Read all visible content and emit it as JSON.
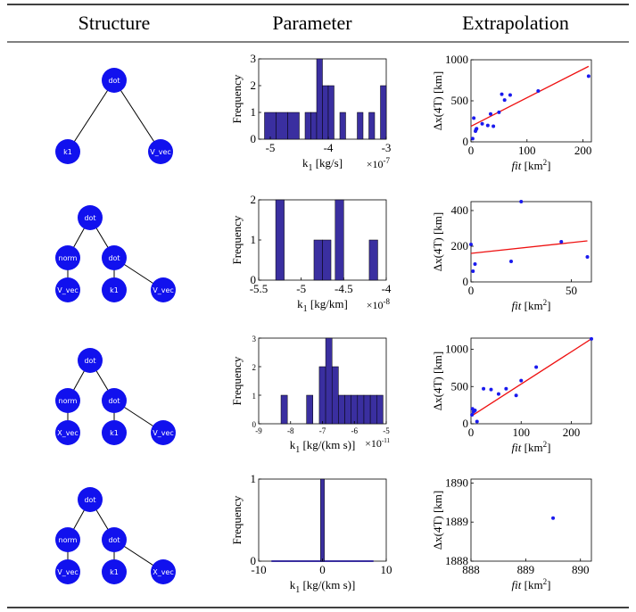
{
  "table": {
    "headers": [
      "Structure",
      "Parameter",
      "Extrapolation"
    ]
  },
  "colors": {
    "node": "#1111ee",
    "bar_fill": "#3a2fa0",
    "point": "#1a1aee",
    "fit_line": "#ee1111"
  },
  "trees": [
    {
      "root": "dot",
      "children": [
        {
          "label": "k1"
        },
        {
          "label": "V_vec"
        }
      ]
    },
    {
      "root": "dot",
      "children": [
        {
          "label": "norm",
          "children": [
            "V_vec"
          ]
        },
        {
          "label": "dot",
          "children": [
            "k1",
            "V_vec"
          ]
        }
      ]
    },
    {
      "root": "dot",
      "children": [
        {
          "label": "norm",
          "children": [
            "X_vec"
          ]
        },
        {
          "label": "dot",
          "children": [
            "k1",
            "V_vec"
          ]
        }
      ]
    },
    {
      "root": "dot",
      "children": [
        {
          "label": "norm",
          "children": [
            "V_vec"
          ]
        },
        {
          "label": "dot",
          "children": [
            "k1",
            "X_vec"
          ]
        }
      ]
    }
  ],
  "chart_data": [
    {
      "type": "bar",
      "role": "histogram",
      "bins": [
        [
          -5.1,
          -4.9
        ],
        [
          -4.9,
          -4.7
        ],
        [
          -4.7,
          -4.5
        ],
        [
          -4.4,
          -4.3
        ],
        [
          -4.3,
          -4.2
        ],
        [
          -4.2,
          -4.1
        ],
        [
          -4.1,
          -4.0
        ],
        [
          -4.0,
          -3.9
        ],
        [
          -3.8,
          -3.7
        ],
        [
          -3.5,
          -3.4
        ],
        [
          -3.3,
          -3.2
        ],
        [
          -3.1,
          -3.0
        ]
      ],
      "values": [
        1,
        1,
        1,
        1,
        1,
        3,
        2,
        2,
        1,
        1,
        1,
        2
      ],
      "xlim": [
        -5.2,
        -3.0
      ],
      "ylim": [
        0,
        3
      ],
      "xticks": [
        "-5",
        "-4",
        "-3"
      ],
      "yticks": [
        "0",
        "1",
        "2",
        "3"
      ],
      "xlabel": "k",
      "xlabel_sub": "1",
      "xlabel_unit": " [kg/s]",
      "exponent": "×10",
      "exponent_power": "-7",
      "ylabel": "Frequency"
    },
    {
      "type": "scatter",
      "points": [
        [
          3,
          40
        ],
        [
          5,
          290
        ],
        [
          8,
          130
        ],
        [
          9,
          150
        ],
        [
          10,
          160
        ],
        [
          20,
          220
        ],
        [
          30,
          200
        ],
        [
          35,
          340
        ],
        [
          40,
          190
        ],
        [
          50,
          360
        ],
        [
          55,
          580
        ],
        [
          60,
          510
        ],
        [
          70,
          570
        ],
        [
          120,
          620
        ],
        [
          210,
          800
        ]
      ],
      "fit": [
        [
          0,
          190
        ],
        [
          210,
          920
        ]
      ],
      "xlim": [
        0,
        215
      ],
      "ylim": [
        0,
        1000
      ],
      "xticks": [
        "0",
        "100",
        "200"
      ],
      "yticks": [
        "0",
        "500",
        "1000"
      ],
      "xlabel": "fit",
      "xlabel_unit": " [km",
      "xlabel_sup": "2",
      "xlabel_close": "]",
      "ylabel": "Δx(4T) [km]"
    },
    {
      "type": "bar",
      "role": "histogram",
      "bins": [
        [
          -5.3,
          -5.2
        ],
        [
          -4.85,
          -4.75
        ],
        [
          -4.75,
          -4.65
        ],
        [
          -4.6,
          -4.5
        ],
        [
          -4.2,
          -4.1
        ]
      ],
      "values": [
        2,
        1,
        1,
        2,
        1
      ],
      "xlim": [
        -5.5,
        -4.0
      ],
      "ylim": [
        0,
        2
      ],
      "xticks": [
        "-5.5",
        "-5",
        "-4.5",
        "-4"
      ],
      "yticks": [
        "0",
        "1",
        "2"
      ],
      "xlabel": "k",
      "xlabel_sub": "1",
      "xlabel_unit": " [kg/km]",
      "exponent": "×10",
      "exponent_power": "-8",
      "ylabel": "Frequency"
    },
    {
      "type": "scatter",
      "points": [
        [
          0,
          210
        ],
        [
          1,
          60
        ],
        [
          2,
          100
        ],
        [
          20,
          115
        ],
        [
          25,
          450
        ],
        [
          45,
          225
        ],
        [
          58,
          140
        ]
      ],
      "fit": [
        [
          0,
          160
        ],
        [
          58,
          230
        ]
      ],
      "xlim": [
        0,
        60
      ],
      "ylim": [
        0,
        450
      ],
      "xticks": [
        "0",
        "50"
      ],
      "yticks": [
        "0",
        "200",
        "400"
      ],
      "xlabel": "fit",
      "xlabel_unit": " [km",
      "xlabel_sup": "2",
      "xlabel_close": "]",
      "ylabel": "Δx(4T) [km]"
    },
    {
      "type": "bar",
      "role": "histogram",
      "bins": [
        [
          -8.3,
          -8.1
        ],
        [
          -7.5,
          -7.3
        ],
        [
          -7.1,
          -6.9
        ],
        [
          -6.9,
          -6.7
        ],
        [
          -6.7,
          -6.5
        ],
        [
          -6.5,
          -6.3
        ],
        [
          -6.3,
          -6.1
        ],
        [
          -6.1,
          -5.9
        ],
        [
          -5.9,
          -5.7
        ],
        [
          -5.7,
          -5.5
        ],
        [
          -5.5,
          -5.3
        ],
        [
          -5.3,
          -5.1
        ]
      ],
      "values": [
        1,
        1,
        2,
        3,
        2,
        1,
        1,
        1,
        1,
        1,
        1,
        1
      ],
      "xlim": [
        -9,
        -5
      ],
      "ylim": [
        0,
        3
      ],
      "xticks": [
        "-9",
        "-8",
        "-7",
        "-6",
        "-5"
      ],
      "yticks": [
        "0",
        "1",
        "2",
        "3"
      ],
      "xlabel": "k",
      "xlabel_sub": "1",
      "xlabel_unit": " [kg/(km s)]",
      "exponent": "×10",
      "exponent_power": "-11",
      "ylabel": "Frequency",
      "small_ticks": true
    },
    {
      "type": "scatter",
      "points": [
        [
          2,
          120
        ],
        [
          3,
          200
        ],
        [
          5,
          160
        ],
        [
          8,
          180
        ],
        [
          12,
          30
        ],
        [
          25,
          470
        ],
        [
          40,
          460
        ],
        [
          55,
          400
        ],
        [
          70,
          470
        ],
        [
          90,
          380
        ],
        [
          100,
          580
        ],
        [
          130,
          760
        ],
        [
          240,
          1140
        ]
      ],
      "fit": [
        [
          0,
          100
        ],
        [
          240,
          1140
        ]
      ],
      "xlim": [
        0,
        240
      ],
      "ylim": [
        0,
        1150
      ],
      "xticks": [
        "0",
        "100",
        "200"
      ],
      "yticks": [
        "0",
        "500",
        "1000"
      ],
      "xlabel": "fit",
      "xlabel_unit": " [km",
      "xlabel_sup": "2",
      "xlabel_close": "]",
      "ylabel": "Δx(4T) [km]"
    },
    {
      "type": "bar",
      "role": "histogram",
      "bins": [
        [
          -0.3,
          0.3
        ]
      ],
      "values": [
        1
      ],
      "baseline": [
        -8,
        8
      ],
      "xlim": [
        -10,
        10
      ],
      "ylim": [
        0,
        1
      ],
      "xticks": [
        "-10",
        "0",
        "10"
      ],
      "yticks": [
        "0",
        "1"
      ],
      "xlabel": "k",
      "xlabel_sub": "1",
      "xlabel_unit": " [kg/(km s)]",
      "ylabel": "Frequency"
    },
    {
      "type": "scatter",
      "points": [
        [
          889.5,
          1889.1
        ]
      ],
      "fit": null,
      "xlim": [
        888,
        890.2
      ],
      "ylim": [
        1888,
        1890.1
      ],
      "xticks": [
        "888",
        "889",
        "890"
      ],
      "yticks": [
        "1888",
        "1889",
        "1890"
      ],
      "xlabel": "fit",
      "xlabel_unit": " [km",
      "xlabel_sup": "2",
      "xlabel_close": "]",
      "ylabel": "Δx(4T) [km]"
    }
  ]
}
